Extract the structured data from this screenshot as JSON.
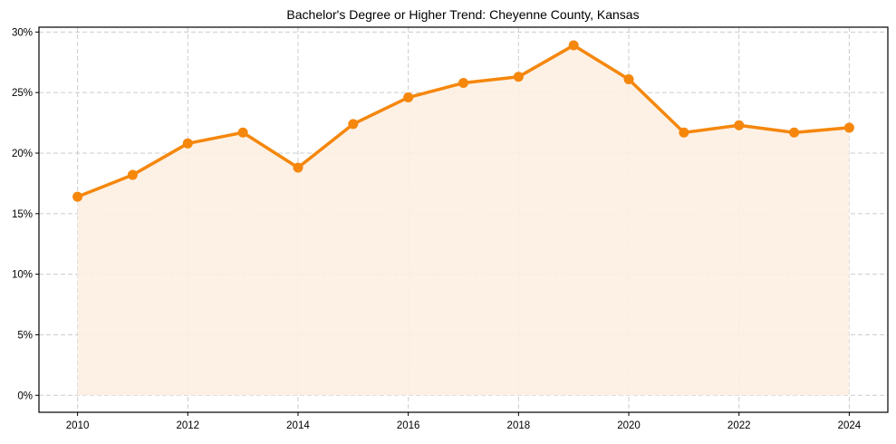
{
  "chart_data": {
    "type": "line",
    "title": "Bachelor's Degree or Higher Trend: Cheyenne County, Kansas",
    "xlabel": "",
    "ylabel": "",
    "x": [
      2010,
      2011,
      2012,
      2013,
      2014,
      2015,
      2016,
      2017,
      2018,
      2019,
      2020,
      2021,
      2022,
      2023,
      2024
    ],
    "series": [
      {
        "name": "Bachelor's Degree or Higher",
        "values": [
          16.4,
          18.2,
          20.8,
          21.7,
          18.8,
          22.4,
          24.6,
          25.8,
          26.3,
          28.9,
          26.1,
          21.7,
          22.3,
          21.7,
          22.1
        ],
        "color": "#f5870c",
        "fill": "#fdf0e3"
      }
    ],
    "x_ticks": [
      2010,
      2012,
      2014,
      2016,
      2018,
      2020,
      2022,
      2024
    ],
    "y_ticks": [
      0,
      5,
      10,
      15,
      20,
      25,
      30
    ],
    "y_tick_labels": [
      "0%",
      "5%",
      "10%",
      "15%",
      "20%",
      "25%",
      "30%"
    ],
    "xlim": [
      2009.3,
      2024.7
    ],
    "ylim": [
      -1.4,
      30.4
    ],
    "grid": true,
    "legend": "none"
  }
}
